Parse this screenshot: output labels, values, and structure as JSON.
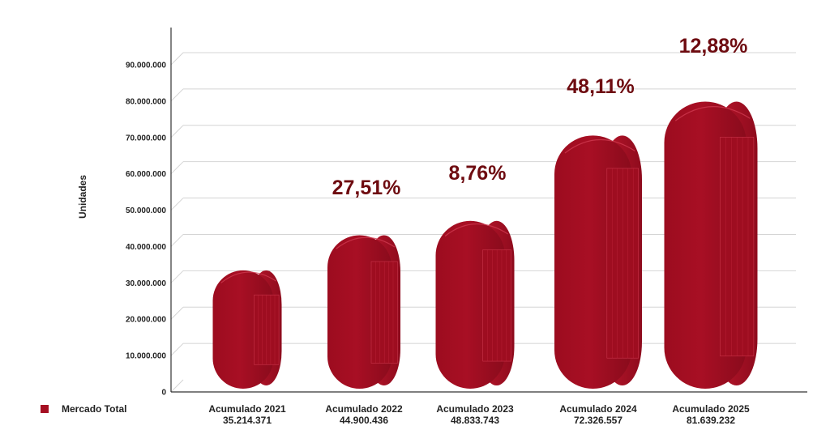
{
  "chart_data": {
    "type": "bar",
    "categories": [
      "Acumulado 2021",
      "Acumulado 2022",
      "Acumulado 2023",
      "Acumulado 2024",
      "Acumulado 2025"
    ],
    "value_labels": [
      "35.214.371",
      "44.900.436",
      "48.833.743",
      "72.326.557",
      "81.639.232"
    ],
    "series": [
      {
        "name": "Mercado Total",
        "values": [
          35214371,
          44900436,
          48833743,
          72326557,
          81639232
        ]
      }
    ],
    "growth_labels": [
      "",
      "27,51%",
      "8,76%",
      "48,11%",
      "12,88%"
    ],
    "ylabel": "Unidades",
    "ylim": [
      0,
      90000000
    ],
    "yticks": [
      0,
      10000000,
      20000000,
      30000000,
      40000000,
      50000000,
      60000000,
      70000000,
      80000000,
      90000000
    ],
    "ytick_labels": [
      "0",
      "10.000.000",
      "20.000.000",
      "30.000.000",
      "40.000.000",
      "50.000.000",
      "60.000.000",
      "70.000.000",
      "80.000.000",
      "90.000.000"
    ],
    "grid": true,
    "legend_position": "bottom-left",
    "colors": {
      "bar": "#a50f22",
      "bar_dark": "#7d0a18",
      "bar_light": "#c21a30",
      "label": "#6e0b10",
      "grid": "#d4d4d4",
      "axis": "#333333"
    }
  }
}
